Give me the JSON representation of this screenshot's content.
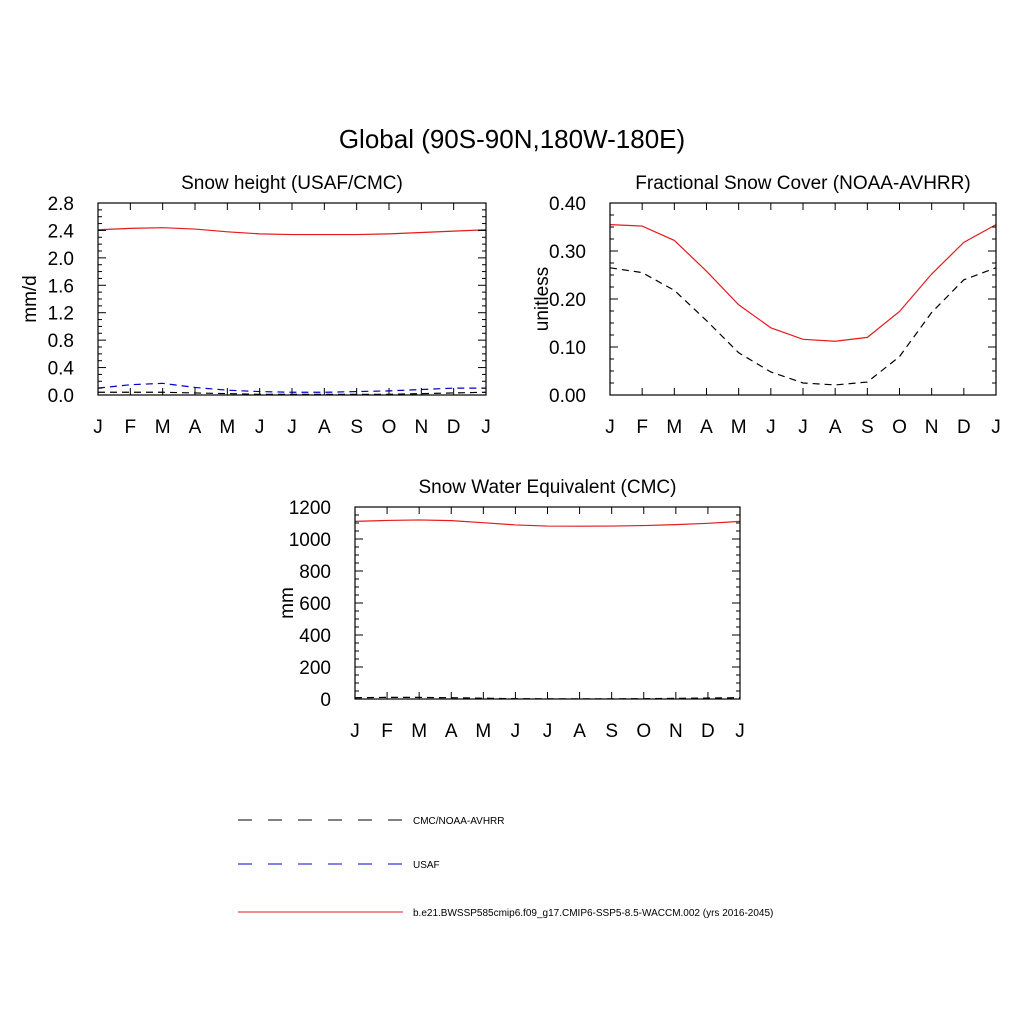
{
  "figure": {
    "title": "Global (90S-90N,180W-180E)"
  },
  "colors": {
    "model": "#e41a1c",
    "usaf": "#0000cc",
    "obs": "#000000"
  },
  "legend": {
    "placement": "bottom-center",
    "entries": [
      {
        "label": "CMC/NOAA-AVHRR",
        "style": "dash-long",
        "color": "#000000"
      },
      {
        "label": "USAF",
        "style": "dash-long",
        "color": "#0000cc"
      },
      {
        "label": "b.e21.BWSSP585cmip6.f09_g17.CMIP6-SSP5-8.5-WACCM.002 (yrs 2016-2045)",
        "style": "solid",
        "color": "#e41a1c"
      }
    ]
  },
  "chart_data": [
    {
      "type": "line",
      "title": "Snow height (USAF/CMC)",
      "xlabel": "",
      "ylabel": "mm/d",
      "categories": [
        "J",
        "F",
        "M",
        "A",
        "M",
        "J",
        "J",
        "A",
        "S",
        "O",
        "N",
        "D",
        "J"
      ],
      "ylim": [
        0,
        2.8
      ],
      "yticks": [
        "0.0",
        "0.4",
        "0.8",
        "1.2",
        "1.6",
        "2.0",
        "2.4",
        "2.8"
      ],
      "grid": false,
      "series": [
        {
          "legend": 2,
          "style": "solid",
          "color": "#e41a1c",
          "values": [
            2.41,
            2.43,
            2.44,
            2.42,
            2.38,
            2.35,
            2.34,
            2.34,
            2.34,
            2.35,
            2.37,
            2.39,
            2.41
          ]
        },
        {
          "legend": 1,
          "style": "dash",
          "color": "#0000cc",
          "values": [
            0.1,
            0.15,
            0.17,
            0.11,
            0.07,
            0.05,
            0.04,
            0.04,
            0.05,
            0.06,
            0.08,
            0.1,
            0.1
          ]
        },
        {
          "legend": 0,
          "style": "dash",
          "color": "#000000",
          "values": [
            0.04,
            0.04,
            0.04,
            0.03,
            0.02,
            0.01,
            0.01,
            0.01,
            0.01,
            0.01,
            0.02,
            0.03,
            0.04
          ]
        }
      ]
    },
    {
      "type": "line",
      "title": "Fractional Snow Cover (NOAA-AVHRR)",
      "xlabel": "",
      "ylabel": "unitless",
      "categories": [
        "J",
        "F",
        "M",
        "A",
        "M",
        "J",
        "J",
        "A",
        "S",
        "O",
        "N",
        "D",
        "J"
      ],
      "ylim": [
        0,
        0.4
      ],
      "yticks": [
        "0.00",
        "0.10",
        "0.20",
        "0.30",
        "0.40"
      ],
      "grid": false,
      "series": [
        {
          "legend": 2,
          "style": "solid",
          "color": "#e41a1c",
          "values": [
            0.355,
            0.352,
            0.322,
            0.258,
            0.188,
            0.14,
            0.116,
            0.112,
            0.12,
            0.174,
            0.252,
            0.318,
            0.355
          ]
        },
        {
          "legend": 0,
          "style": "dash",
          "color": "#000000",
          "values": [
            0.265,
            0.255,
            0.218,
            0.155,
            0.088,
            0.048,
            0.025,
            0.021,
            0.027,
            0.08,
            0.172,
            0.24,
            0.265
          ]
        }
      ]
    },
    {
      "type": "line",
      "title": "Snow Water Equivalent (CMC)",
      "xlabel": "",
      "ylabel": "mm",
      "categories": [
        "J",
        "F",
        "M",
        "A",
        "M",
        "J",
        "J",
        "A",
        "S",
        "O",
        "N",
        "D",
        "J"
      ],
      "ylim": [
        0,
        1200
      ],
      "yticks": [
        "0",
        "200",
        "400",
        "600",
        "800",
        "1000",
        "1200"
      ],
      "grid": false,
      "series": [
        {
          "legend": 2,
          "style": "solid",
          "color": "#e41a1c",
          "values": [
            1110,
            1116,
            1119,
            1115,
            1102,
            1088,
            1081,
            1080,
            1081,
            1084,
            1090,
            1098,
            1110
          ]
        },
        {
          "legend": 0,
          "style": "dash",
          "color": "#000000",
          "values": [
            8,
            10,
            10,
            8,
            5,
            2,
            1,
            1,
            1,
            2,
            4,
            6,
            8
          ]
        }
      ]
    }
  ]
}
